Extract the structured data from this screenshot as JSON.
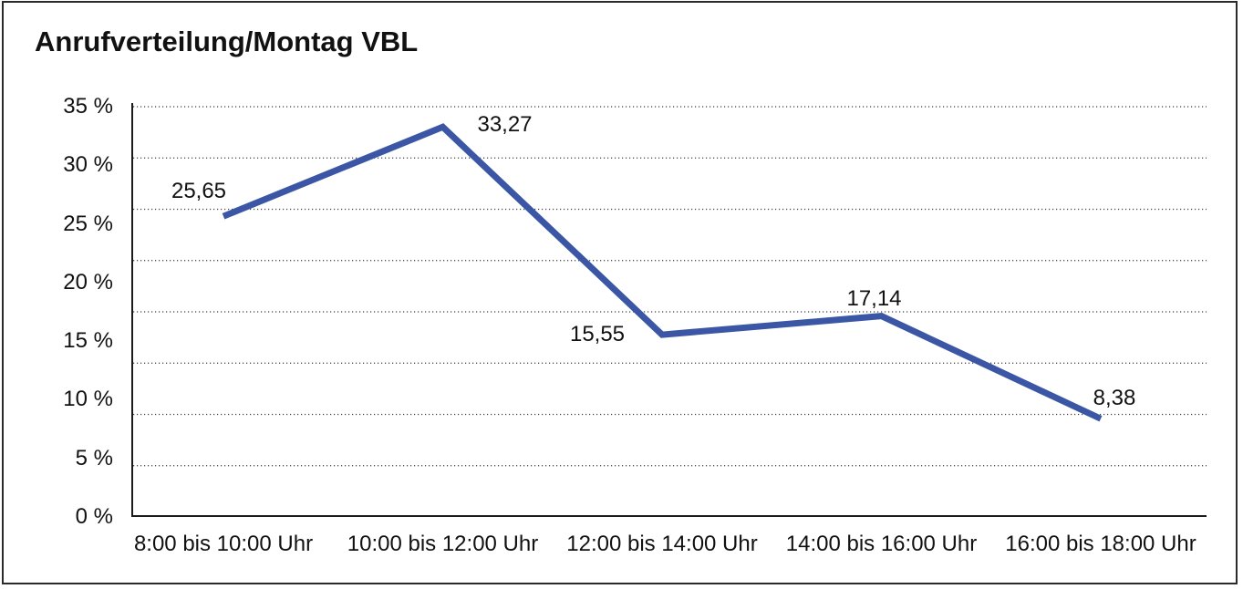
{
  "page": {
    "border_color": "#2a2a2a",
    "background_color": "#ffffff",
    "text_color": "#111111"
  },
  "chart_data": {
    "type": "line",
    "title": "Anrufverteilung/Montag VBL",
    "categories": [
      "8:00 bis 10:00 Uhr",
      "10:00 bis 12:00 Uhr",
      "12:00 bis 14:00 Uhr",
      "14:00 bis 16:00 Uhr",
      "16:00 bis 18:00 Uhr"
    ],
    "values": [
      25.65,
      33.27,
      15.55,
      17.14,
      8.38
    ],
    "point_labels": [
      "25,65",
      "33,27",
      "15,55",
      "17,14",
      "8,38"
    ],
    "y_tick_labels_top_to_bottom": [
      "35 %",
      "30 %",
      "25 %",
      "20 %",
      "15 %",
      "10 %",
      "5 %",
      "0 %"
    ],
    "ylim": [
      0,
      35
    ],
    "xlabel": "",
    "ylabel": "",
    "legend": "none",
    "grid": "dotted-horizontal",
    "line_color": "#3B56A5",
    "axis_color": "#1a1a1a",
    "grid_color": "#3d3d3d"
  }
}
